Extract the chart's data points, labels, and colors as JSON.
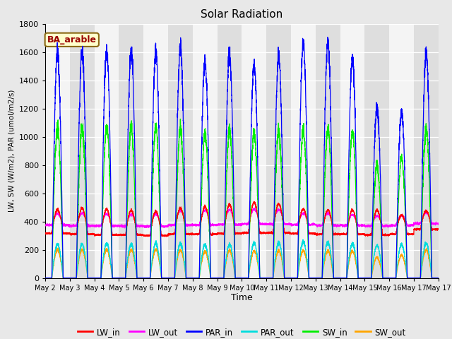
{
  "title": "Solar Radiation",
  "xlabel": "Time",
  "ylabel": "LW, SW (W/m2), PAR (umol/m2/s)",
  "ylim": [
    0,
    1800
  ],
  "annotation": "BA_arable",
  "x_tick_labels": [
    "May 2",
    "May 3",
    "May 4",
    "May 5",
    "May 6",
    "May 7",
    "May 8",
    "May 9",
    "May 10",
    "May 11",
    "May 12",
    "May 13",
    "May 14",
    "May 15",
    "May 16",
    "May 17"
  ],
  "colors": {
    "LW_in": "#ff0000",
    "LW_out": "#ff00ff",
    "PAR_in": "#0000ff",
    "PAR_out": "#00dddd",
    "SW_in": "#00ee00",
    "SW_out": "#ffa500"
  },
  "n_days": 16,
  "samples_per_day": 288,
  "fig_bg": "#e8e8e8",
  "plot_bg": "#ececec",
  "band_light": "#f4f4f4",
  "band_dark": "#dedede"
}
